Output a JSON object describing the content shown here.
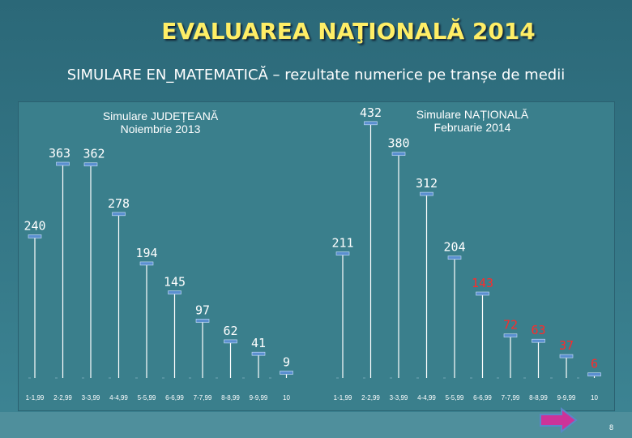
{
  "slide": {
    "title": "EVALUAREA NAŢIONALĂ 2014",
    "subtitle": "SIMULARE  EN_MATEMATICĂ – rezultate numerice pe tranșe de medii",
    "page_number": "8"
  },
  "colors": {
    "background": "#2e6e7e",
    "panel": "#3a7f8c",
    "title": "#ffee66",
    "stem": "#ffffff",
    "label_left": "#ffffff",
    "label_right_upper": "#ffffff",
    "label_right_lower": "#ff2a2a",
    "nav_arrow": "#cc3399"
  },
  "icons": {
    "nav": "next-arrow-icon"
  },
  "chart_data": [
    {
      "type": "bar",
      "style": "stem",
      "title_lines": [
        "Simulare JUDEȚEANĂ",
        "Noiembrie 2013"
      ],
      "categories": [
        "1-1,99",
        "2-2,99",
        "3-3,99",
        "4-4,99",
        "5-5,99",
        "6-6,99",
        "7-7,99",
        "8-8,99",
        "9-9,99",
        "10"
      ],
      "values": [
        240,
        363,
        362,
        278,
        194,
        145,
        97,
        62,
        41,
        9
      ],
      "ylim": [
        0,
        440
      ],
      "grid": false
    },
    {
      "type": "bar",
      "style": "stem",
      "title_lines": [
        "Simulare NAȚIONALĂ",
        "Februarie 2014"
      ],
      "categories": [
        "1-1,99",
        "2-2,99",
        "3-3,99",
        "4-4,99",
        "5-5,99",
        "6-6,99",
        "7-7,99",
        "8-8,99",
        "9-9,99",
        "10"
      ],
      "values": [
        211,
        432,
        380,
        312,
        204,
        143,
        72,
        63,
        37,
        6
      ],
      "ylim": [
        0,
        440
      ],
      "grid": false
    }
  ]
}
